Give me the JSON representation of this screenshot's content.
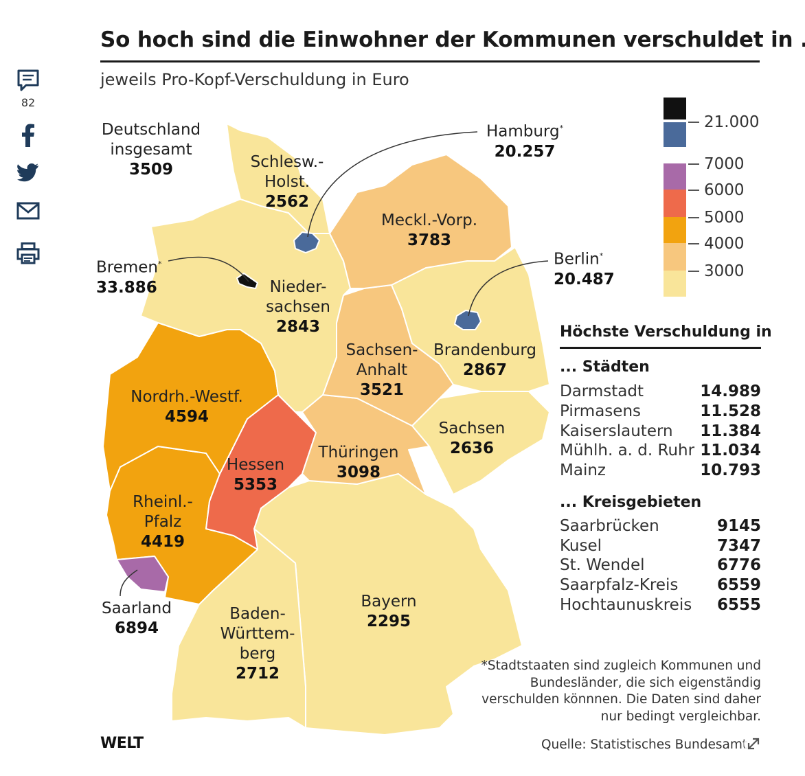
{
  "title": "So hoch sind die Einwohner der Kommunen verschuldet in ...",
  "subtitle": "jeweils Pro-Kopf-Verschuldung in Euro",
  "share": {
    "comment_count": "82",
    "icons": [
      "comment-icon",
      "facebook-icon",
      "twitter-icon",
      "mail-icon",
      "print-icon"
    ]
  },
  "germany_total": {
    "line1": "Deutschland",
    "line2": "insgesamt",
    "value": "3509"
  },
  "states": [
    {
      "id": "schleswig-holstein",
      "line1": "Schlesw.-",
      "line2": "Holst.",
      "value": "2562",
      "color": "#F9E59A"
    },
    {
      "id": "hamburg",
      "line1": "Hamburg",
      "value": "20.257",
      "color": "#4A6A9A"
    },
    {
      "id": "mecklenburg-vorpommern",
      "line1": "Meckl.-Vorp.",
      "value": "3783",
      "color": "#F7C77E"
    },
    {
      "id": "bremen",
      "line1": "Bremen",
      "value": "33.886",
      "color": "#111111"
    },
    {
      "id": "berlin",
      "line1": "Berlin",
      "value": "20.487",
      "color": "#4A6A9A"
    },
    {
      "id": "niedersachsen",
      "line1": "Nieder-",
      "line2": "sachsen",
      "value": "2843",
      "color": "#F9E59A"
    },
    {
      "id": "sachsen-anhalt",
      "line1": "Sachsen-",
      "line2": "Anhalt",
      "value": "3521",
      "color": "#F7C77E"
    },
    {
      "id": "brandenburg",
      "line1": "Brandenburg",
      "value": "2867",
      "color": "#F9E59A"
    },
    {
      "id": "nordrhein-westfalen",
      "line1": "Nordrh.-Westf.",
      "value": "4594",
      "color": "#F2A30F"
    },
    {
      "id": "sachsen",
      "line1": "Sachsen",
      "value": "2636",
      "color": "#F9E59A"
    },
    {
      "id": "hessen",
      "line1": "Hessen",
      "value": "5353",
      "color": "#EE6A4B"
    },
    {
      "id": "thueringen",
      "line1": "Thüringen",
      "value": "3098",
      "color": "#F7C77E"
    },
    {
      "id": "rheinland-pfalz",
      "line1": "Rheinl.-",
      "line2": "Pfalz",
      "value": "4419",
      "color": "#F2A30F"
    },
    {
      "id": "saarland",
      "line1": "Saarland",
      "value": "6894",
      "color": "#A86AA8"
    },
    {
      "id": "baden-wuerttemberg",
      "line1": "Baden-",
      "line2": "Württem-",
      "line3": "berg",
      "value": "2712",
      "color": "#F9E59A"
    },
    {
      "id": "bayern",
      "line1": "Bayern",
      "value": "2295",
      "color": "#F9E59A"
    }
  ],
  "legend": [
    {
      "color": "#111111",
      "label": "21.000"
    },
    {
      "color": "#4A6A9A",
      "label": ""
    },
    {
      "color": "#A86AA8",
      "label": "7000"
    },
    {
      "color": "#EE6A4B",
      "label": "6000"
    },
    {
      "color": "#F2A30F",
      "label": "5000"
    },
    {
      "color": "#F7C77E",
      "label": "4000"
    },
    {
      "color": "#F9E59A",
      "label": "3000"
    }
  ],
  "ranking": {
    "heading": "Höchste Verschuldung in",
    "cities_title": "... Städten",
    "cities": [
      {
        "name": "Darmstadt",
        "value": "14.989"
      },
      {
        "name": "Pirmasens",
        "value": "11.528"
      },
      {
        "name": "Kaiserslautern",
        "value": "11.384"
      },
      {
        "name": "Mühlh. a. d. Ruhr",
        "value": "11.034"
      },
      {
        "name": "Mainz",
        "value": "10.793"
      }
    ],
    "districts_title": "... Kreisgebieten",
    "districts": [
      {
        "name": "Saarbrücken",
        "value": "9145"
      },
      {
        "name": "Kusel",
        "value": "7347"
      },
      {
        "name": "St. Wendel",
        "value": "6776"
      },
      {
        "name": "Saarpfalz-Kreis",
        "value": "6559"
      },
      {
        "name": "Hochtaunuskreis",
        "value": "6555"
      }
    ]
  },
  "footnote": "*Stadtstaaten sind zugleich Kommunen und Bundesländer, die sich eigenständig verschulden könnnen. Die Daten sind daher nur bedingt vergleichbar.",
  "logo": "WELT",
  "source": "Quelle: Statistisches Bundesamt"
}
